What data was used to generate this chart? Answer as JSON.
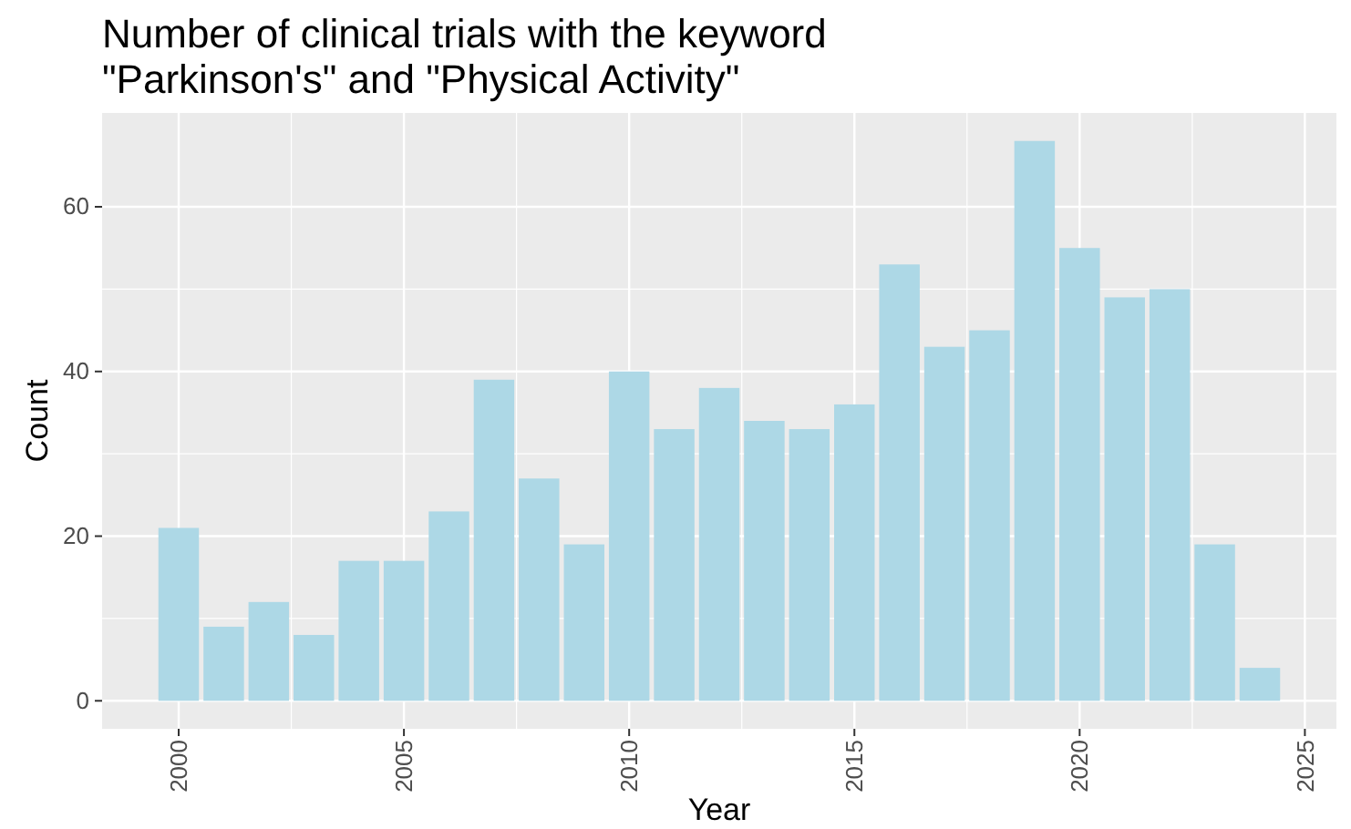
{
  "chart_data": {
    "type": "bar",
    "title": "Number of clinical trials with the keyword\n\"Parkinson's\" and \"Physical Activity\"",
    "xlabel": "Year",
    "ylabel": "Count",
    "x": [
      2000,
      2001,
      2002,
      2003,
      2004,
      2005,
      2006,
      2007,
      2008,
      2009,
      2010,
      2011,
      2012,
      2013,
      2014,
      2015,
      2016,
      2017,
      2018,
      2019,
      2020,
      2021,
      2022,
      2023,
      2024
    ],
    "values": [
      21,
      9,
      12,
      8,
      17,
      17,
      23,
      39,
      27,
      19,
      40,
      33,
      38,
      34,
      33,
      36,
      53,
      43,
      45,
      68,
      55,
      49,
      50,
      19,
      4
    ],
    "color": "#add8e6",
    "xlim": [
      1998.3,
      2025.7
    ],
    "xticks": [
      2000,
      2005,
      2010,
      2015,
      2020,
      2025
    ],
    "ylim": [
      -3.4,
      71.4
    ],
    "yticks": [
      0,
      20,
      40,
      60
    ],
    "grid": true
  }
}
